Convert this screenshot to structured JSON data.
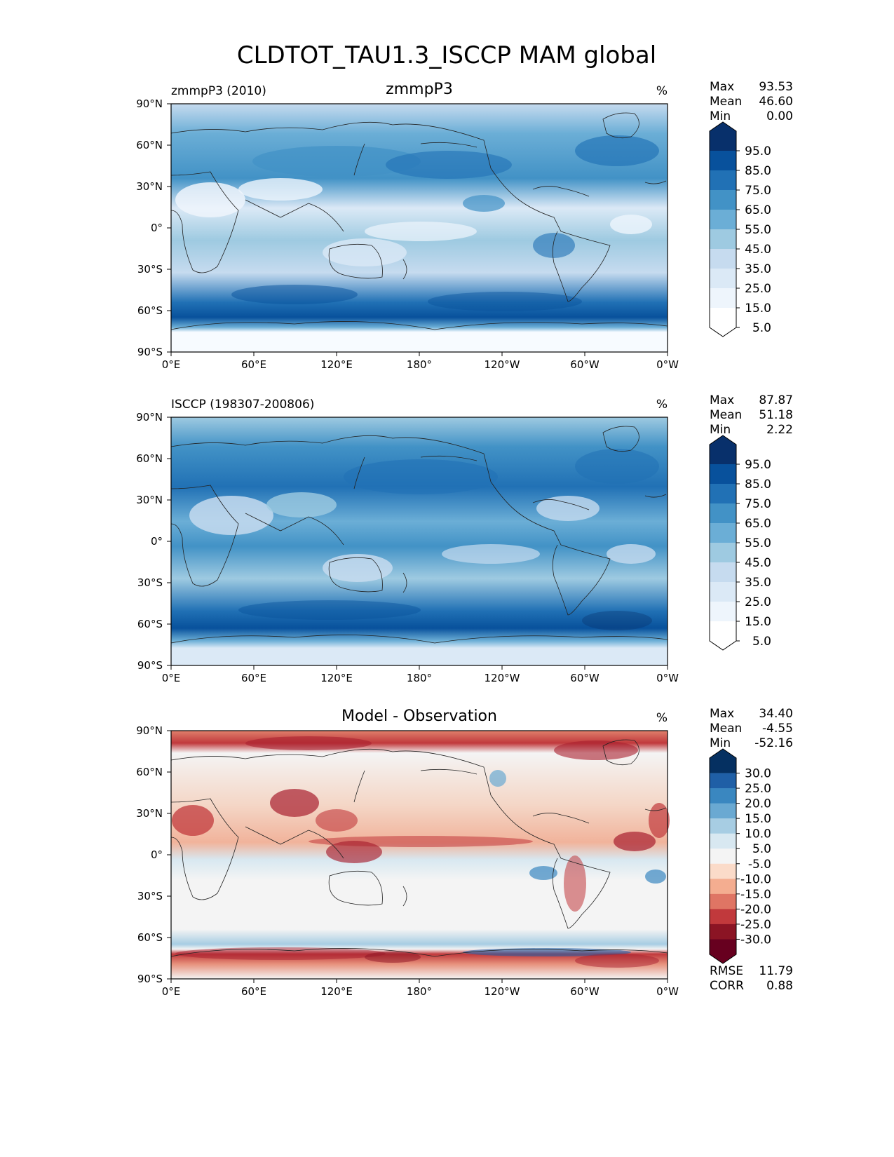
{
  "figure": {
    "title": "CLDTOT_TAU1.3_ISCCP MAM global"
  },
  "chart_data": [
    {
      "type": "heatmap",
      "id": "model",
      "title": "zmmpP3",
      "left_label": "zmmpP3 (2010)",
      "units": "%",
      "xticks": [
        "0°E",
        "60°E",
        "120°E",
        "180°",
        "120°W",
        "60°W",
        "0°W"
      ],
      "yticks": [
        "90°N",
        "60°N",
        "30°N",
        "0°",
        "30°S",
        "60°S",
        "90°S"
      ],
      "xlim": [
        0,
        360
      ],
      "ylim": [
        -90,
        90
      ],
      "stats": [
        {
          "label": "Max",
          "value": "93.53"
        },
        {
          "label": "Mean",
          "value": "46.60"
        },
        {
          "label": "Min",
          "value": "0.00"
        }
      ],
      "colorbar": {
        "levels": [
          "95.0",
          "85.0",
          "75.0",
          "65.0",
          "55.0",
          "45.0",
          "35.0",
          "25.0",
          "15.0",
          "5.0"
        ],
        "colors": [
          "#08306b",
          "#08519c",
          "#2171b5",
          "#4292c6",
          "#6baed6",
          "#9ecae1",
          "#c6dbef",
          "#dbe9f6",
          "#eef5fc",
          "#ffffff"
        ]
      }
    },
    {
      "type": "heatmap",
      "id": "obs",
      "title": "",
      "left_label": "ISCCP (198307-200806)",
      "units": "%",
      "xticks": [
        "0°E",
        "60°E",
        "120°E",
        "180°",
        "120°W",
        "60°W",
        "0°W"
      ],
      "yticks": [
        "90°N",
        "60°N",
        "30°N",
        "0°",
        "30°S",
        "60°S",
        "90°S"
      ],
      "xlim": [
        0,
        360
      ],
      "ylim": [
        -90,
        90
      ],
      "stats": [
        {
          "label": "Max",
          "value": "87.87"
        },
        {
          "label": "Mean",
          "value": "51.18"
        },
        {
          "label": "Min",
          "value": "2.22"
        }
      ],
      "colorbar": {
        "levels": [
          "95.0",
          "85.0",
          "75.0",
          "65.0",
          "55.0",
          "45.0",
          "35.0",
          "25.0",
          "15.0",
          "5.0"
        ],
        "colors": [
          "#08306b",
          "#08519c",
          "#2171b5",
          "#4292c6",
          "#6baed6",
          "#9ecae1",
          "#c6dbef",
          "#dbe9f6",
          "#eef5fc",
          "#ffffff"
        ]
      }
    },
    {
      "type": "heatmap",
      "id": "diff",
      "title": "Model - Observation",
      "left_label": "",
      "units": "%",
      "xticks": [
        "0°E",
        "60°E",
        "120°E",
        "180°",
        "120°W",
        "60°W",
        "0°W"
      ],
      "yticks": [
        "90°N",
        "60°N",
        "30°N",
        "0°",
        "30°S",
        "60°S",
        "90°S"
      ],
      "xlim": [
        0,
        360
      ],
      "ylim": [
        -90,
        90
      ],
      "stats": [
        {
          "label": "Max",
          "value": "34.40"
        },
        {
          "label": "Mean",
          "value": "-4.55"
        },
        {
          "label": "Min",
          "value": "-52.16"
        }
      ],
      "extra_stats": [
        {
          "label": "RMSE",
          "value": "11.79"
        },
        {
          "label": "CORR",
          "value": "0.88"
        }
      ],
      "colorbar": {
        "levels": [
          "30.0",
          "25.0",
          "20.0",
          "15.0",
          "10.0",
          "5.0",
          "-5.0",
          "-10.0",
          "-15.0",
          "-20.0",
          "-25.0",
          "-30.0"
        ],
        "colors": [
          "#053061",
          "#1f5fa6",
          "#3a87c0",
          "#6aa9d2",
          "#a7cde3",
          "#d8e8f1",
          "#f4f4f4",
          "#fbdbc9",
          "#f4ad90",
          "#df7564",
          "#c1393c",
          "#8b1424",
          "#67001f"
        ]
      }
    }
  ]
}
